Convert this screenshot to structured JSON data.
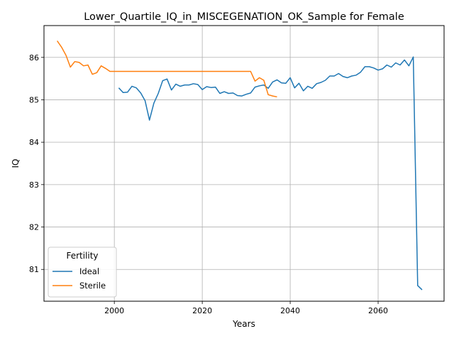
{
  "chart_data": {
    "type": "line",
    "title": "Lower_Quartile_IQ_in_MISCEGENATION_OK_Sample for Female",
    "xlabel": "Years",
    "ylabel": "IQ",
    "xlim": [
      1984,
      2075
    ],
    "ylim": [
      80.25,
      86.75
    ],
    "xticks": [
      2000,
      2020,
      2040,
      2060
    ],
    "yticks": [
      81,
      82,
      83,
      84,
      85,
      86
    ],
    "grid": true,
    "legend": {
      "title": "Fertility",
      "position": "lower-left"
    },
    "series": [
      {
        "name": "Ideal",
        "color": "#1f77b4",
        "x": [
          2001,
          2002,
          2003,
          2004,
          2005,
          2006,
          2007,
          2008,
          2009,
          2010,
          2011,
          2012,
          2013,
          2014,
          2015,
          2016,
          2017,
          2018,
          2019,
          2020,
          2021,
          2022,
          2023,
          2024,
          2025,
          2026,
          2027,
          2028,
          2029,
          2030,
          2031,
          2032,
          2033,
          2034,
          2035,
          2036,
          2037,
          2038,
          2039,
          2040,
          2041,
          2042,
          2043,
          2044,
          2045,
          2046,
          2047,
          2048,
          2049,
          2050,
          2051,
          2052,
          2053,
          2054,
          2055,
          2056,
          2057,
          2058,
          2059,
          2060,
          2061,
          2062,
          2063,
          2064,
          2065,
          2066,
          2067,
          2068,
          2069,
          2070
        ],
        "values": [
          85.28,
          85.17,
          85.18,
          85.32,
          85.28,
          85.16,
          84.98,
          84.52,
          84.92,
          85.15,
          85.45,
          85.49,
          85.23,
          85.37,
          85.32,
          85.35,
          85.35,
          85.38,
          85.36,
          85.24,
          85.31,
          85.29,
          85.3,
          85.15,
          85.19,
          85.15,
          85.16,
          85.1,
          85.09,
          85.13,
          85.16,
          85.3,
          85.33,
          85.35,
          85.27,
          85.42,
          85.47,
          85.4,
          85.39,
          85.52,
          85.28,
          85.39,
          85.21,
          85.32,
          85.27,
          85.38,
          85.41,
          85.46,
          85.56,
          85.56,
          85.62,
          85.55,
          85.52,
          85.56,
          85.58,
          85.65,
          85.78,
          85.78,
          85.75,
          85.7,
          85.73,
          85.82,
          85.77,
          85.87,
          85.82,
          85.94,
          85.8,
          86.01,
          80.62,
          80.52
        ]
      },
      {
        "name": "Sterile",
        "color": "#ff7f0e",
        "x": [
          1987,
          1988,
          1989,
          1990,
          1991,
          1992,
          1993,
          1994,
          1995,
          1996,
          1997,
          1998,
          1999,
          2000,
          2005,
          2010,
          2015,
          2020,
          2025,
          2030,
          2031,
          2032,
          2033,
          2034,
          2035,
          2036,
          2037
        ],
        "values": [
          86.39,
          86.24,
          86.05,
          85.77,
          85.9,
          85.88,
          85.8,
          85.82,
          85.6,
          85.64,
          85.8,
          85.74,
          85.67,
          85.67,
          85.67,
          85.67,
          85.67,
          85.67,
          85.67,
          85.67,
          85.67,
          85.44,
          85.52,
          85.46,
          85.12,
          85.09,
          85.07
        ]
      }
    ]
  }
}
